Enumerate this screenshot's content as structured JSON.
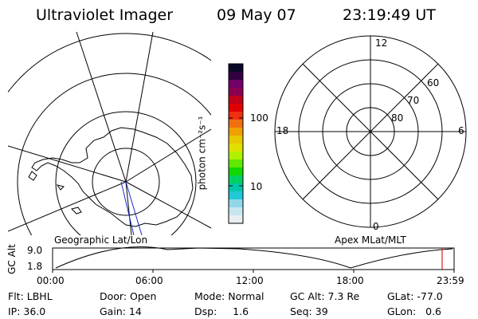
{
  "header": {
    "instrument": "Ultraviolet Imager",
    "date": "09 May 07",
    "time": "23:19:49 UT"
  },
  "panels": {
    "left_label": "Geographic Lat/Lon",
    "right_label": "Apex MLat/MLT"
  },
  "colorbar": {
    "unit_label": "photon cm⁻²s⁻¹",
    "ticks": [
      "100",
      "10"
    ],
    "colors": [
      "#0a0a28",
      "#300040",
      "#700068",
      "#8a0050",
      "#c00018",
      "#e00000",
      "#f03010",
      "#f07010",
      "#f0a000",
      "#e8c800",
      "#e0e000",
      "#b0f000",
      "#60e800",
      "#10d800",
      "#00d060",
      "#00c8a8",
      "#20c8d8",
      "#90d8e8",
      "#c8e6ef",
      "#e8eef2"
    ]
  },
  "polar_grid": {
    "mlt_labels": [
      "12",
      "6",
      "0",
      "18"
    ],
    "lat_labels": [
      "60",
      "70",
      "80"
    ]
  },
  "altitude_plot": {
    "y_title": "GC Alt",
    "y_ticks": [
      "9.0",
      "1.8"
    ],
    "x_ticks": [
      "00:00",
      "06:00",
      "12:00",
      "18:00",
      "23:59"
    ],
    "marker_color": "#d02020"
  },
  "info": {
    "flt": "Flt: LBHL",
    "door": "Door: Open",
    "mode": "Mode: Normal",
    "gc_alt": "GC Alt: 7.3 Re",
    "glat": "GLat: -77.0",
    "ip": "IP: 36.0",
    "gain": "Gain: 14",
    "dsp": "Dsp:     1.6",
    "seq": "Seq: 39",
    "glon": "GLon:   0.6"
  }
}
